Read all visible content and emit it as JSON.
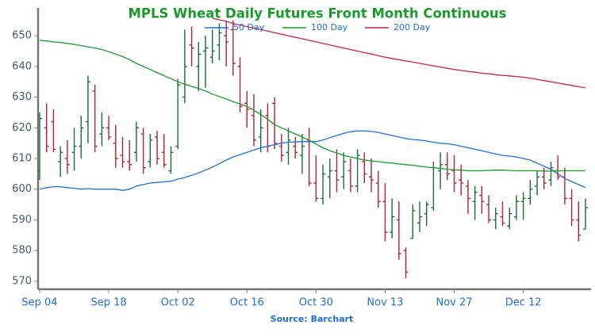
{
  "chart_data": {
    "type": "ohlc",
    "title": "MPLS Wheat Daily Futures Front Month Continuous",
    "source": "Source: Barchart",
    "categories": [
      "Sep 04",
      null,
      null,
      null,
      null,
      null,
      null,
      null,
      null,
      null,
      "Sep 18",
      null,
      null,
      null,
      null,
      null,
      null,
      null,
      null,
      null,
      "Oct 02",
      null,
      null,
      null,
      null,
      null,
      null,
      null,
      null,
      null,
      "Oct 16",
      null,
      null,
      null,
      null,
      null,
      null,
      null,
      null,
      null,
      "Oct 30",
      null,
      null,
      null,
      null,
      null,
      null,
      null,
      null,
      null,
      "Nov 13",
      null,
      null,
      null,
      null,
      null,
      null,
      null,
      null,
      null,
      "Nov 27",
      null,
      null,
      null,
      null,
      null,
      null,
      null,
      null,
      null,
      "Dec 12",
      null,
      null,
      null,
      null,
      null,
      null,
      null,
      null,
      null
    ],
    "open": [
      606,
      620,
      622,
      609,
      610,
      612,
      614,
      622,
      632,
      618,
      620,
      615,
      611,
      609,
      612,
      618,
      609,
      617,
      612,
      606,
      614,
      630,
      647,
      640,
      645,
      643,
      647,
      650,
      652,
      640,
      628,
      624,
      617,
      624,
      628,
      614,
      612,
      614,
      611,
      616,
      602,
      597,
      604,
      606,
      604,
      606,
      601,
      609,
      604,
      602,
      596,
      586,
      590,
      580,
      584,
      589,
      592,
      594,
      606,
      608,
      606,
      603,
      601,
      596,
      598,
      595,
      590,
      591,
      588,
      591,
      596,
      597,
      601,
      604,
      603,
      606,
      604,
      597,
      590,
      587
    ],
    "high": [
      625,
      628,
      626,
      614,
      616,
      620,
      624,
      637,
      634,
      625,
      624,
      621,
      617,
      616,
      622,
      620,
      618,
      619,
      618,
      614,
      636,
      652,
      653,
      648,
      650,
      652,
      654,
      655,
      655,
      643,
      632,
      631,
      626,
      628,
      630,
      618,
      620,
      617,
      618,
      620,
      611,
      608,
      610,
      613,
      612,
      610,
      613,
      612,
      610,
      606,
      602,
      597,
      596,
      581,
      595,
      596,
      596,
      609,
      612,
      612,
      611,
      608,
      603,
      601,
      601,
      598,
      594,
      596,
      594,
      598,
      599,
      603,
      606,
      607,
      609,
      611,
      607,
      600,
      596,
      597
    ],
    "low": [
      603,
      612,
      612,
      604,
      605,
      606,
      610,
      615,
      612,
      614,
      616,
      607,
      607,
      606,
      609,
      605,
      607,
      608,
      607,
      605,
      613,
      628,
      640,
      632,
      633,
      641,
      642,
      640,
      637,
      625,
      620,
      614,
      612,
      612,
      613,
      609,
      608,
      610,
      605,
      601,
      596,
      595,
      597,
      599,
      600,
      599,
      599,
      602,
      599,
      594,
      583,
      584,
      577,
      571,
      584,
      586,
      588,
      593,
      600,
      603,
      599,
      598,
      592,
      590,
      592,
      589,
      587,
      588,
      587,
      590,
      590,
      595,
      598,
      600,
      601,
      603,
      595,
      588,
      583,
      587
    ],
    "close": [
      623,
      614,
      613,
      612,
      608,
      614,
      620,
      635,
      614,
      620,
      617,
      610,
      609,
      608,
      620,
      607,
      616,
      610,
      608,
      612,
      634,
      640,
      646,
      644,
      646,
      645,
      651,
      648,
      641,
      627,
      626,
      616,
      620,
      614,
      615,
      611,
      616,
      612,
      614,
      602,
      597,
      605,
      606,
      603,
      609,
      601,
      611,
      605,
      603,
      596,
      586,
      591,
      579,
      573,
      593,
      591,
      595,
      607,
      608,
      605,
      602,
      602,
      597,
      599,
      596,
      590,
      592,
      589,
      592,
      596,
      597,
      600,
      604,
      602,
      607,
      604,
      597,
      590,
      585,
      594
    ],
    "up_color": "#1b6b3c",
    "down_color": "#b0233b",
    "series": [
      {
        "name": "50 Day",
        "color": "#1f6fd6",
        "values": [
          600,
          600.5,
          600.8,
          600.8,
          600.5,
          600.3,
          600,
          600.2,
          600,
          600,
          600,
          600,
          599.6,
          600,
          601,
          601.5,
          602,
          602.2,
          602.4,
          602.6,
          603.3,
          603.8,
          604.5,
          605.3,
          606.2,
          607.2,
          608.3,
          609.5,
          610.5,
          611.3,
          612,
          612.8,
          613.5,
          614,
          614.5,
          615,
          615.3,
          615.4,
          615.5,
          615.5,
          615.5,
          616,
          616.8,
          617.5,
          618.2,
          618.7,
          619,
          619,
          618.8,
          618.5,
          618,
          617.5,
          617,
          616.5,
          616.2,
          616,
          615.7,
          615.3,
          615,
          614.8,
          614.5,
          614,
          613.5,
          613,
          612.5,
          612,
          611.5,
          611,
          610.8,
          610.5,
          610,
          609.5,
          608.5,
          607.5,
          606.5,
          605,
          603.5,
          602.5,
          601.5,
          600.5
        ]
      },
      {
        "name": "100 Day",
        "color": "#1a9a2a",
        "values": [
          648.5,
          648.3,
          648,
          647.8,
          647.5,
          647.2,
          646.8,
          646.4,
          646,
          645.5,
          644.8,
          644,
          643.2,
          642.2,
          641,
          640,
          639,
          638,
          637,
          636,
          635,
          634.2,
          633.5,
          632.8,
          632,
          631,
          630.2,
          629.4,
          628.5,
          627.8,
          627,
          625.7,
          624.3,
          622.8,
          621,
          620,
          619,
          618,
          617,
          616,
          614.7,
          613.5,
          612.5,
          611.8,
          611,
          610.5,
          610,
          609.5,
          609.2,
          609,
          608.7,
          608.5,
          608.2,
          608,
          607.8,
          607.5,
          607.2,
          607,
          606.8,
          606.5,
          606.3,
          606.2,
          606,
          606,
          606,
          606.1,
          606.2,
          606.2,
          606.1,
          606,
          606,
          606,
          606,
          605.9,
          605.9,
          606,
          606,
          606,
          606,
          606
        ]
      },
      {
        "name": "200 Day",
        "color": "#c8234a",
        "values": [
          null,
          null,
          null,
          null,
          null,
          null,
          null,
          null,
          null,
          null,
          null,
          null,
          null,
          null,
          null,
          null,
          null,
          null,
          null,
          null,
          null,
          null,
          null,
          null,
          null,
          655.7,
          655.2,
          654.7,
          654,
          653.5,
          653,
          652.5,
          652,
          651.5,
          651,
          650.5,
          650,
          649.5,
          649,
          648.5,
          648,
          647.5,
          647,
          646.5,
          646,
          645.5,
          645,
          644.5,
          644,
          643.5,
          643,
          642.6,
          642.2,
          641.8,
          641.4,
          641,
          640.6,
          640.2,
          639.8,
          639.4,
          639,
          638.7,
          638.4,
          638.1,
          637.8,
          637.6,
          637.3,
          637.1,
          636.9,
          636.7,
          636.5,
          636.2,
          635.8,
          635.4,
          635,
          634.6,
          634.2,
          633.8,
          633.4,
          633
        ]
      }
    ],
    "ylim": [
      567.4,
      657
    ],
    "yticks": [
      570,
      580,
      590,
      600,
      610,
      620,
      630,
      640,
      650
    ]
  }
}
